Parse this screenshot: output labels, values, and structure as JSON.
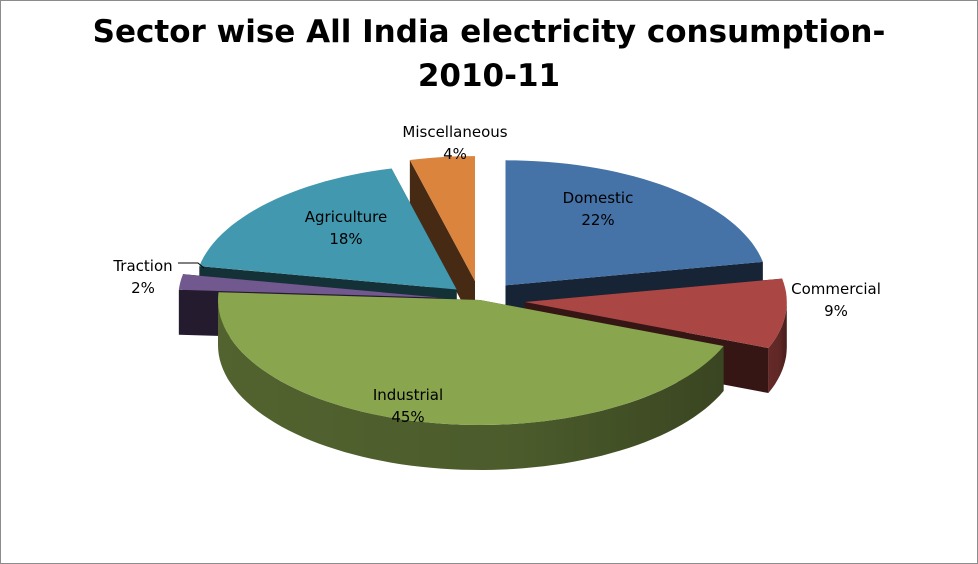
{
  "chart_data": {
    "type": "pie",
    "title_lines": [
      "Sector wise All India electricity consumption-",
      "2010-11"
    ],
    "slices": [
      {
        "label": "Domestic",
        "value": 22,
        "value_label": "22%",
        "color": "#4572A7"
      },
      {
        "label": "Commercial",
        "value": 9,
        "value_label": "9%",
        "color": "#AA4643"
      },
      {
        "label": "Industrial",
        "value": 45,
        "value_label": "45%",
        "color": "#89A54E"
      },
      {
        "label": "Traction",
        "value": 2,
        "value_label": "2%",
        "color": "#71588F"
      },
      {
        "label": "Agriculture",
        "value": 18,
        "value_label": "18%",
        "color": "#4198AF"
      },
      {
        "label": "Miscellaneous",
        "value": 4,
        "value_label": "4%",
        "color": "#DB843D"
      }
    ],
    "legend": "none",
    "style": "3d-exploded"
  }
}
